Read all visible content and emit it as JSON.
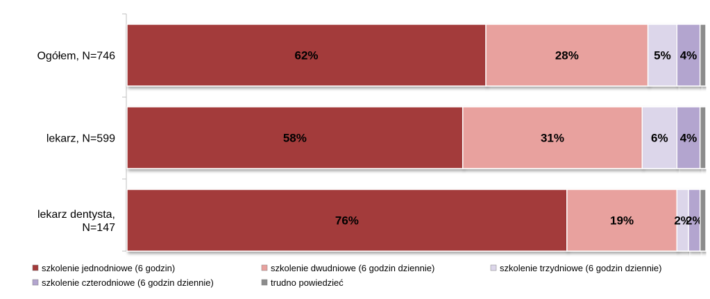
{
  "chart_data": {
    "type": "bar",
    "orientation": "horizontal",
    "stacked": true,
    "percent_stacked": true,
    "categories": [
      "Ogółem, N=746",
      "lekarz, N=599",
      "lekarz dentysta, N=147"
    ],
    "series": [
      {
        "name": "szkolenie jednodniowe (6 godzin)",
        "values": [
          62,
          58,
          76
        ],
        "labels": [
          "62%",
          "58%",
          "76%"
        ],
        "color": "#a33a3a"
      },
      {
        "name": "szkolenie dwudniowe (6 godzin dziennie)",
        "values": [
          28,
          31,
          19
        ],
        "labels": [
          "28%",
          "31%",
          "19%"
        ],
        "color": "#e8a19e"
      },
      {
        "name": "szkolenie trzydniowe (6 godzin dziennie)",
        "values": [
          5,
          6,
          2
        ],
        "labels": [
          "5%",
          "6%",
          "2%"
        ],
        "color": "#dcd6ea"
      },
      {
        "name": "szkolenie czterodniowe (6 godzin dziennie)",
        "values": [
          4,
          4,
          2
        ],
        "labels": [
          "4%",
          "4%",
          "2%"
        ],
        "color": "#b3a5cf"
      },
      {
        "name": "trudno powiedzieć",
        "values": [
          1,
          1,
          1
        ],
        "labels": [
          "",
          "",
          ""
        ],
        "color": "#8c8c8c"
      }
    ],
    "xlim": [
      0,
      100
    ],
    "legend_position": "bottom",
    "grid": false
  }
}
